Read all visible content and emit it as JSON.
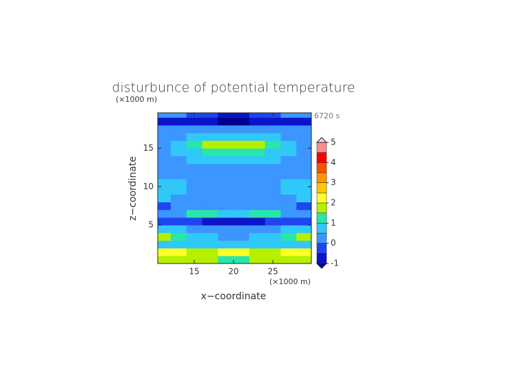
{
  "chart_data": {
    "type": "contour",
    "title": "disturbunce of potential temperature",
    "x_label": "x−coordinate",
    "y_label": "z−coordinate",
    "x_unit": "(×1000 m)",
    "y_unit": "(×1000 m)",
    "time_label": "6720 s",
    "xlim": [
      10.35,
      29.9
    ],
    "ylim": [
      0,
      19.6
    ],
    "xticks": [
      15,
      20,
      25
    ],
    "yticks": [
      5,
      10,
      15
    ],
    "x": [
      11,
      13,
      15,
      17,
      19,
      21,
      23,
      25,
      27,
      29
    ],
    "y": [
      0.5,
      1.5,
      2.5,
      3.5,
      4.5,
      5.5,
      6.5,
      7.5,
      8.5,
      9.5,
      10.5,
      11.5,
      12.5,
      13.5,
      14.5,
      15.5,
      16.5,
      17.5,
      18.5,
      19.5
    ],
    "z": [
      [
        1.8,
        1.7,
        1.6,
        1.5,
        1.4,
        1.4,
        1.5,
        1.6,
        1.7,
        1.8
      ],
      [
        2.1,
        2.0,
        1.8,
        1.6,
        2.2,
        2.2,
        1.6,
        1.8,
        2.0,
        2.1
      ],
      [
        0.8,
        0.7,
        0.6,
        0.5,
        0.6,
        0.6,
        0.5,
        0.6,
        0.7,
        0.8
      ],
      [
        1.6,
        1.2,
        0.7,
        0.5,
        0.3,
        0.3,
        0.5,
        0.7,
        1.2,
        1.6
      ],
      [
        0.9,
        0.6,
        0.4,
        0.2,
        0.1,
        0.1,
        0.2,
        0.4,
        0.6,
        0.9
      ],
      [
        -0.3,
        -0.4,
        -0.5,
        -0.6,
        -0.7,
        -0.7,
        -0.6,
        -0.5,
        -0.4,
        -0.3
      ],
      [
        0.3,
        0.4,
        1.2,
        1.0,
        0.5,
        0.5,
        1.0,
        1.2,
        0.4,
        0.3
      ],
      [
        -0.2,
        0.2,
        0.3,
        0.4,
        0.3,
        0.3,
        0.4,
        0.3,
        0.2,
        -0.2
      ],
      [
        0.6,
        0.4,
        0.3,
        0.3,
        0.3,
        0.3,
        0.3,
        0.3,
        0.4,
        0.6
      ],
      [
        0.7,
        0.5,
        0.3,
        0.3,
        0.3,
        0.3,
        0.3,
        0.3,
        0.5,
        0.7
      ],
      [
        0.6,
        0.5,
        0.3,
        0.3,
        0.3,
        0.3,
        0.3,
        0.3,
        0.5,
        0.6
      ],
      [
        0.4,
        0.3,
        0.3,
        0.3,
        0.3,
        0.3,
        0.3,
        0.3,
        0.3,
        0.4
      ],
      [
        0.4,
        0.4,
        0.4,
        0.4,
        0.4,
        0.4,
        0.4,
        0.4,
        0.4,
        0.4
      ],
      [
        0.4,
        0.4,
        0.6,
        0.7,
        0.7,
        0.7,
        0.7,
        0.6,
        0.4,
        0.4
      ],
      [
        0.4,
        0.6,
        0.9,
        1.1,
        1.2,
        1.2,
        1.1,
        0.9,
        0.6,
        0.4
      ],
      [
        0.4,
        0.6,
        1.1,
        1.5,
        1.7,
        1.7,
        1.5,
        1.1,
        0.6,
        0.4
      ],
      [
        0.3,
        0.4,
        0.6,
        0.7,
        0.7,
        0.7,
        0.7,
        0.6,
        0.4,
        0.3
      ],
      [
        0.1,
        0.2,
        0.3,
        0.3,
        0.3,
        0.3,
        0.3,
        0.3,
        0.2,
        0.1
      ],
      [
        -0.6,
        -0.7,
        -0.9,
        -1.0,
        -1.1,
        -1.1,
        -1.0,
        -0.9,
        -0.7,
        -0.6
      ],
      [
        0.2,
        0.0,
        -0.3,
        -0.5,
        -0.6,
        -0.6,
        -0.5,
        -0.3,
        0.0,
        0.2
      ]
    ],
    "levels": [
      -1,
      -0.5,
      0,
      0.5,
      1,
      1.5,
      2,
      2.5,
      3,
      3.5,
      4,
      4.5,
      5
    ],
    "colors": [
      "#00008c",
      "#0a14c8",
      "#1e46f0",
      "#3c96ff",
      "#30c8f8",
      "#28e6aa",
      "#b4f000",
      "#ffff28",
      "#ffc800",
      "#ff9600",
      "#ff5000",
      "#ff0000",
      "#ff8c8c",
      "#f8d8d8"
    ],
    "colorbar_ticks": [
      -1,
      0,
      1,
      2,
      3,
      4,
      5
    ]
  }
}
